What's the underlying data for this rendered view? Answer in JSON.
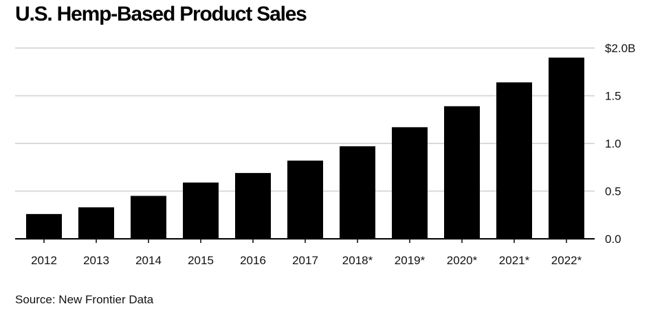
{
  "title": "U.S. Hemp-Based Product Sales",
  "source": "Source: New Frontier Data",
  "chart_data": {
    "type": "bar",
    "title": "U.S. Hemp-Based Product Sales",
    "categories": [
      "2012",
      "2013",
      "2014",
      "2015",
      "2016",
      "2017",
      "2018*",
      "2019*",
      "2020*",
      "2021*",
      "2022*"
    ],
    "values": [
      0.26,
      0.33,
      0.45,
      0.59,
      0.69,
      0.82,
      0.97,
      1.17,
      1.39,
      1.64,
      1.9
    ],
    "ylim": [
      0,
      2.0
    ],
    "yticks": [
      0,
      0.5,
      1.0,
      1.5,
      2.0
    ],
    "ytick_labels": [
      "0.0",
      "0.5",
      "1.0",
      "1.5",
      "$2.0B"
    ],
    "y_axis_position": "right",
    "grid": true,
    "bar_color": "#000000",
    "grid_color": "#d9d9d9",
    "xlabel": "",
    "ylabel": ""
  }
}
